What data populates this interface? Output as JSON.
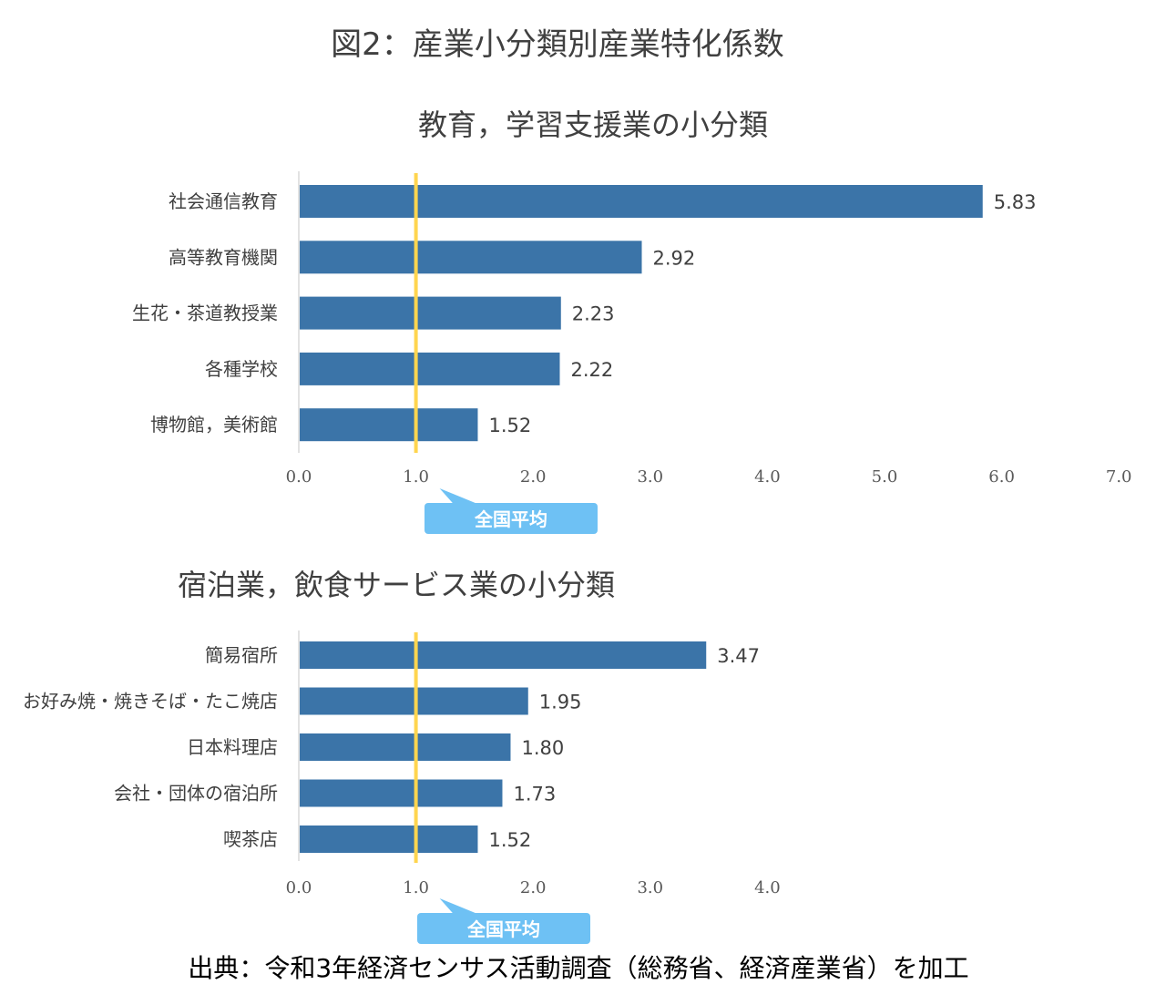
{
  "title": "図2：産業小分類別産業特化係数",
  "source": "出典：令和3年経済センサス活動調査（総務省、経済産業省）を加工",
  "colors": {
    "bar": "#3b74a8",
    "avg_line": "#ffd54f",
    "callout": "#6ec1f4"
  },
  "chart_data": [
    {
      "type": "bar",
      "orientation": "horizontal",
      "title": "教育，学習支援業の小分類",
      "categories": [
        "社会通信教育",
        "高等教育機関",
        "生花・茶道教授業",
        "各種学校",
        "博物館，美術館"
      ],
      "values": [
        5.83,
        2.92,
        2.23,
        2.22,
        1.52
      ],
      "value_labels": [
        "5.83",
        "2.92",
        "2.23",
        "2.22",
        "1.52"
      ],
      "xlim": [
        0,
        7
      ],
      "ticks": [
        0,
        1,
        2,
        3,
        4,
        5,
        6,
        7
      ],
      "tick_labels": [
        "0.0",
        "1.0",
        "2.0",
        "3.0",
        "4.0",
        "5.0",
        "6.0",
        "7.0"
      ],
      "reference_line": {
        "value": 1.0,
        "label": "全国平均"
      }
    },
    {
      "type": "bar",
      "orientation": "horizontal",
      "title": "宿泊業，飲食サービス業の小分類",
      "categories": [
        "簡易宿所",
        "お好み焼・焼きそば・たこ焼店",
        "日本料理店",
        "会社・団体の宿泊所",
        "喫茶店"
      ],
      "values": [
        3.47,
        1.95,
        1.8,
        1.73,
        1.52
      ],
      "value_labels": [
        "3.47",
        "1.95",
        "1.80",
        "1.73",
        "1.52"
      ],
      "xlim": [
        0,
        4
      ],
      "ticks": [
        0,
        1,
        2,
        3,
        4
      ],
      "tick_labels": [
        "0.0",
        "1.0",
        "2.0",
        "3.0",
        "4.0"
      ],
      "reference_line": {
        "value": 1.0,
        "label": "全国平均"
      }
    }
  ]
}
